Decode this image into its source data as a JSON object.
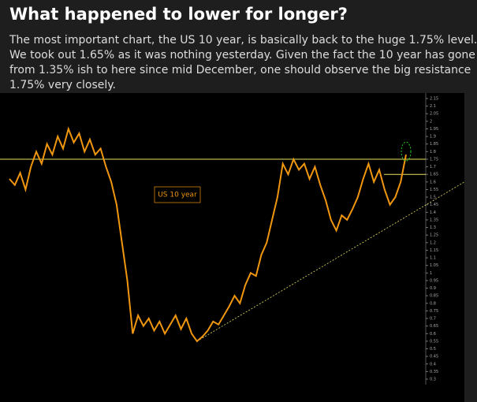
{
  "header": {
    "title": "What happened to lower for longer?",
    "lines": [
      "The most important chart, the US 10 year, is basically back to the huge 1.75% level.",
      "We took out 1.65% as it was nothing yesterday. Given the fact the 10 year has gone",
      "from 1.35% ish to here since mid December, one should observe the big resistance",
      "1.75% very closely."
    ]
  },
  "chart_data": {
    "type": "line",
    "label": "US 10 year",
    "color": "#f0960f",
    "values": [
      1.62,
      1.58,
      1.66,
      1.55,
      1.7,
      1.8,
      1.72,
      1.85,
      1.78,
      1.9,
      1.82,
      1.95,
      1.86,
      1.92,
      1.8,
      1.88,
      1.78,
      1.82,
      1.7,
      1.6,
      1.45,
      1.2,
      0.95,
      0.6,
      0.72,
      0.65,
      0.7,
      0.62,
      0.68,
      0.6,
      0.66,
      0.72,
      0.63,
      0.7,
      0.6,
      0.55,
      0.58,
      0.62,
      0.68,
      0.66,
      0.72,
      0.78,
      0.85,
      0.8,
      0.92,
      1.0,
      0.98,
      1.12,
      1.2,
      1.35,
      1.5,
      1.72,
      1.65,
      1.75,
      1.68,
      1.72,
      1.62,
      1.7,
      1.58,
      1.48,
      1.35,
      1.28,
      1.38,
      1.35,
      1.42,
      1.5,
      1.62,
      1.72,
      1.6,
      1.68,
      1.55,
      1.45,
      1.5,
      1.6,
      1.78
    ],
    "levels": [
      1.75,
      1.65
    ],
    "level_color": "#e8e060",
    "trendline_end": 1.6,
    "ylim": [
      0.3,
      2.15
    ],
    "yticks": [
      2.15,
      2.1,
      2.05,
      2,
      1.95,
      1.9,
      1.85,
      1.8,
      1.75,
      1.7,
      1.65,
      1.6,
      1.55,
      1.5,
      1.45,
      1.4,
      1.35,
      1.3,
      1.25,
      1.2,
      1.15,
      1.1,
      1.05,
      1,
      0.95,
      0.9,
      0.85,
      0.8,
      0.75,
      0.7,
      0.65,
      0.6,
      0.55,
      0.5,
      0.45,
      0.4,
      0.35,
      0.3
    ]
  }
}
